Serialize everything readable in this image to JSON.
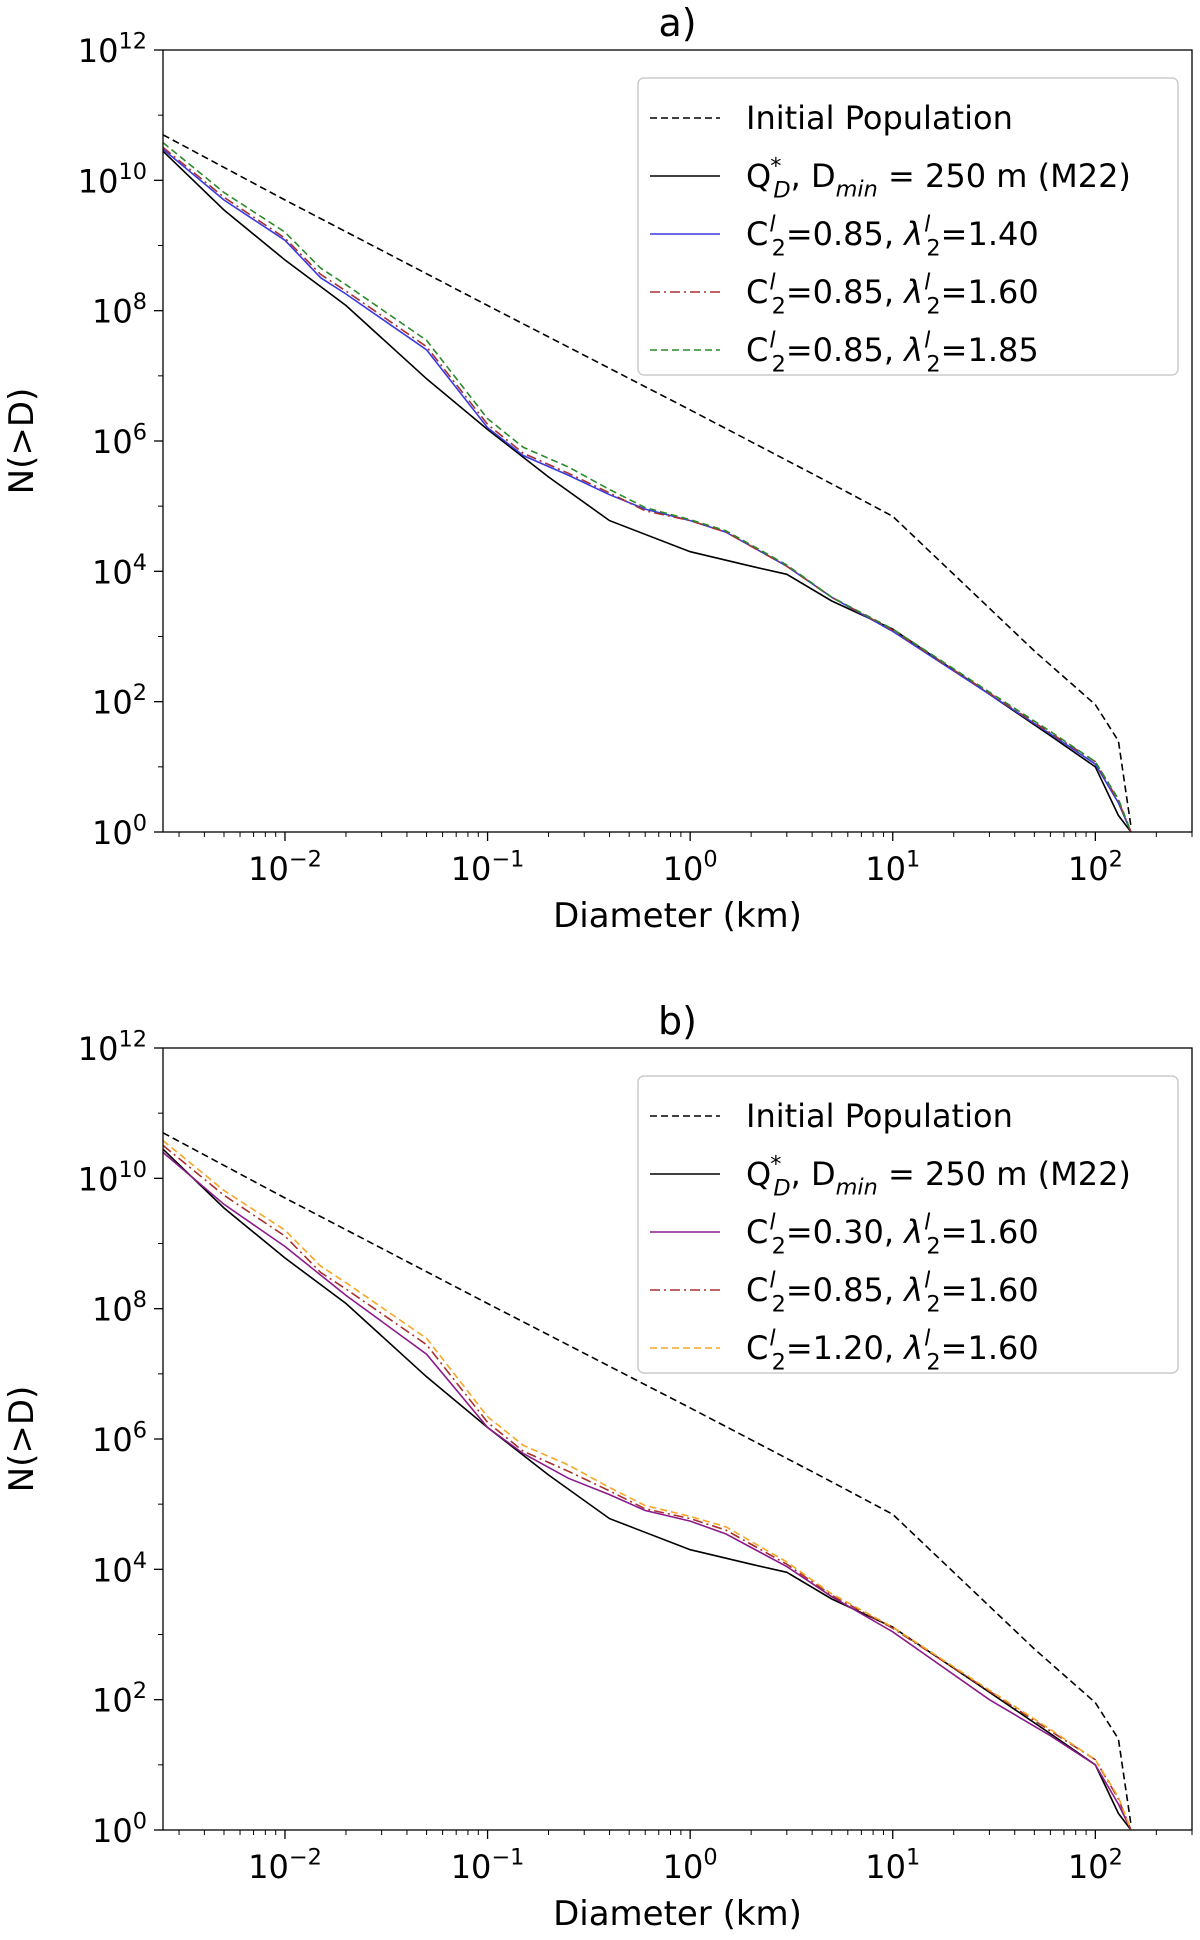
{
  "chart_data": [
    {
      "type": "line",
      "title": "a)",
      "xlabel": "Diameter (km)",
      "ylabel": "N(>D)",
      "xscale": "log",
      "yscale": "log",
      "xlim": [
        0.0025,
        300
      ],
      "ylim": [
        1,
        1000000000000.0
      ],
      "xticks": [
        {
          "base": "10",
          "exp": "−2"
        },
        {
          "base": "10",
          "exp": "−1"
        },
        {
          "base": "10",
          "exp": "0"
        },
        {
          "base": "10",
          "exp": "1"
        },
        {
          "base": "10",
          "exp": "2"
        }
      ],
      "yticks": [
        {
          "base": "10",
          "exp": "0"
        },
        {
          "base": "10",
          "exp": "2"
        },
        {
          "base": "10",
          "exp": "4"
        },
        {
          "base": "10",
          "exp": "6"
        },
        {
          "base": "10",
          "exp": "8"
        },
        {
          "base": "10",
          "exp": "10"
        },
        {
          "base": "10",
          "exp": "12"
        }
      ],
      "grid": false,
      "legend_position": "top-right",
      "series": [
        {
          "name": "Initial Population",
          "color": "#000000",
          "dash": "dashed",
          "x": [
            0.0025,
            0.01,
            0.1,
            1,
            5,
            10,
            50,
            100,
            130,
            150
          ],
          "y": [
            50000000000.0,
            5000000000.0,
            120000000.0,
            3000000.0,
            220000.0,
            70000.0,
            600.0,
            90.0,
            25.0,
            1.2
          ]
        },
        {
          "name": "Q*_D, D_min = 250 m (M22)",
          "color": "#000000",
          "dash": "solid",
          "x": [
            0.0025,
            0.005,
            0.01,
            0.02,
            0.05,
            0.1,
            0.2,
            0.4,
            1,
            2,
            3,
            5,
            10,
            30,
            60,
            100,
            130,
            150
          ],
          "y": [
            28000000000.0,
            3500000000.0,
            600000000.0,
            120000000.0,
            9000000.0,
            1500000.0,
            280000.0,
            60000.0,
            20000.0,
            12000.0,
            9000.0,
            3500.0,
            1300.0,
            130.0,
            30,
            10,
            1.8,
            1
          ]
        },
        {
          "name": "C₂=0.85, λ₂=1.40",
          "color": "#3a3ae0",
          "dash": "solid",
          "x": [
            0.0025,
            0.005,
            0.01,
            0.015,
            0.02,
            0.05,
            0.1,
            0.15,
            0.25,
            0.4,
            0.6,
            1,
            1.5,
            3,
            5,
            10,
            30,
            60,
            100,
            130,
            150
          ],
          "y": [
            30000000000.0,
            5000000000.0,
            1200000000.0,
            320000000.0,
            180000000.0,
            25000000.0,
            1600000.0,
            600000.0,
            300000.0,
            150000.0,
            90000.0,
            60000.0,
            40000.0,
            12000.0,
            4000.0,
            1200.0,
            130.0,
            32,
            11,
            2.8,
            1
          ]
        },
        {
          "name": "C₂=0.85, λ₂=1.60",
          "color": "#a83030",
          "dash": "dashdot",
          "x": [
            0.0025,
            0.005,
            0.01,
            0.015,
            0.02,
            0.05,
            0.1,
            0.15,
            0.25,
            0.4,
            0.6,
            1,
            1.5,
            3,
            5,
            10,
            30,
            60,
            100,
            130,
            150
          ],
          "y": [
            32000000000.0,
            5500000000.0,
            1300000000.0,
            360000000.0,
            200000000.0,
            28000000.0,
            1800000.0,
            650000.0,
            320000.0,
            160000.0,
            85000.0,
            60000.0,
            40000.0,
            12000.0,
            4000.0,
            1250.0,
            135.0,
            33,
            12,
            3,
            1
          ]
        },
        {
          "name": "C₂=0.85, λ₂=1.85",
          "color": "#2a8a2a",
          "dash": "dashed",
          "x": [
            0.0025,
            0.005,
            0.01,
            0.015,
            0.02,
            0.05,
            0.1,
            0.15,
            0.25,
            0.4,
            0.6,
            1,
            1.5,
            3,
            5,
            10,
            30,
            60,
            100,
            130,
            150
          ],
          "y": [
            38000000000.0,
            6500000000.0,
            1600000000.0,
            450000000.0,
            250000000.0,
            35000000.0,
            2200000.0,
            800000.0,
            400000.0,
            180000.0,
            95000.0,
            62000.0,
            42000.0,
            12500.0,
            4000.0,
            1300.0,
            140.0,
            35,
            12,
            3.2,
            1
          ]
        }
      ]
    },
    {
      "type": "line",
      "title": "b)",
      "xlabel": "Diameter (km)",
      "ylabel": "N(>D)",
      "xscale": "log",
      "yscale": "log",
      "xlim": [
        0.0025,
        300
      ],
      "ylim": [
        1,
        1000000000000.0
      ],
      "xticks": [
        {
          "base": "10",
          "exp": "−2"
        },
        {
          "base": "10",
          "exp": "−1"
        },
        {
          "base": "10",
          "exp": "0"
        },
        {
          "base": "10",
          "exp": "1"
        },
        {
          "base": "10",
          "exp": "2"
        }
      ],
      "yticks": [
        {
          "base": "10",
          "exp": "0"
        },
        {
          "base": "10",
          "exp": "2"
        },
        {
          "base": "10",
          "exp": "4"
        },
        {
          "base": "10",
          "exp": "6"
        },
        {
          "base": "10",
          "exp": "8"
        },
        {
          "base": "10",
          "exp": "10"
        },
        {
          "base": "10",
          "exp": "12"
        }
      ],
      "grid": false,
      "legend_position": "top-right",
      "series": [
        {
          "name": "Initial Population",
          "color": "#000000",
          "dash": "dashed",
          "x": [
            0.0025,
            0.01,
            0.1,
            1,
            5,
            10,
            50,
            100,
            130,
            150
          ],
          "y": [
            50000000000.0,
            5000000000.0,
            120000000.0,
            3000000.0,
            220000.0,
            70000.0,
            600.0,
            90.0,
            25.0,
            1.2
          ]
        },
        {
          "name": "Q*_D, D_min = 250 m (M22)",
          "color": "#000000",
          "dash": "solid",
          "x": [
            0.0025,
            0.005,
            0.01,
            0.02,
            0.05,
            0.1,
            0.2,
            0.4,
            1,
            2,
            3,
            5,
            10,
            30,
            60,
            100,
            130,
            150
          ],
          "y": [
            28000000000.0,
            3500000000.0,
            600000000.0,
            120000000.0,
            9000000.0,
            1500000.0,
            280000.0,
            60000.0,
            20000.0,
            12000.0,
            9000.0,
            3500.0,
            1300.0,
            130.0,
            30,
            10,
            1.8,
            1
          ]
        },
        {
          "name": "C₂=0.30, λ₂=1.60",
          "color": "#8b1a8b",
          "dash": "solid",
          "x": [
            0.0025,
            0.005,
            0.01,
            0.02,
            0.05,
            0.1,
            0.15,
            0.25,
            0.4,
            0.6,
            1,
            1.5,
            3,
            5,
            10,
            30,
            60,
            100,
            130,
            150
          ],
          "y": [
            25000000000.0,
            4000000000.0,
            900000000.0,
            160000000.0,
            20000000.0,
            1500000.0,
            600000.0,
            250000.0,
            140000.0,
            80000.0,
            55000.0,
            35000.0,
            11000.0,
            3800.0,
            1100.0,
            100.0,
            28,
            10,
            2.5,
            1
          ]
        },
        {
          "name": "C₂=0.85, λ₂=1.60",
          "color": "#a83030",
          "dash": "dashdot",
          "x": [
            0.0025,
            0.005,
            0.01,
            0.015,
            0.02,
            0.05,
            0.1,
            0.15,
            0.25,
            0.4,
            0.6,
            1,
            1.5,
            3,
            5,
            10,
            30,
            60,
            100,
            130,
            150
          ],
          "y": [
            32000000000.0,
            5500000000.0,
            1300000000.0,
            360000000.0,
            200000000.0,
            28000000.0,
            1800000.0,
            650000.0,
            320000.0,
            160000.0,
            85000.0,
            60000.0,
            40000.0,
            12000.0,
            4000.0,
            1250.0,
            135.0,
            33,
            12,
            3,
            1
          ]
        },
        {
          "name": "C₂=1.20, λ₂=1.60",
          "color": "#f5a623",
          "dash": "dashed",
          "x": [
            0.0025,
            0.005,
            0.01,
            0.015,
            0.02,
            0.05,
            0.1,
            0.15,
            0.25,
            0.4,
            0.6,
            1,
            1.5,
            3,
            5,
            10,
            30,
            60,
            100,
            130,
            150
          ],
          "y": [
            38000000000.0,
            6500000000.0,
            1600000000.0,
            450000000.0,
            250000000.0,
            35000000.0,
            2200000.0,
            800000.0,
            400000.0,
            180000.0,
            95000.0,
            65000.0,
            45000.0,
            13000.0,
            4200.0,
            1300.0,
            140.0,
            35,
            12,
            3.2,
            1
          ]
        }
      ]
    }
  ]
}
